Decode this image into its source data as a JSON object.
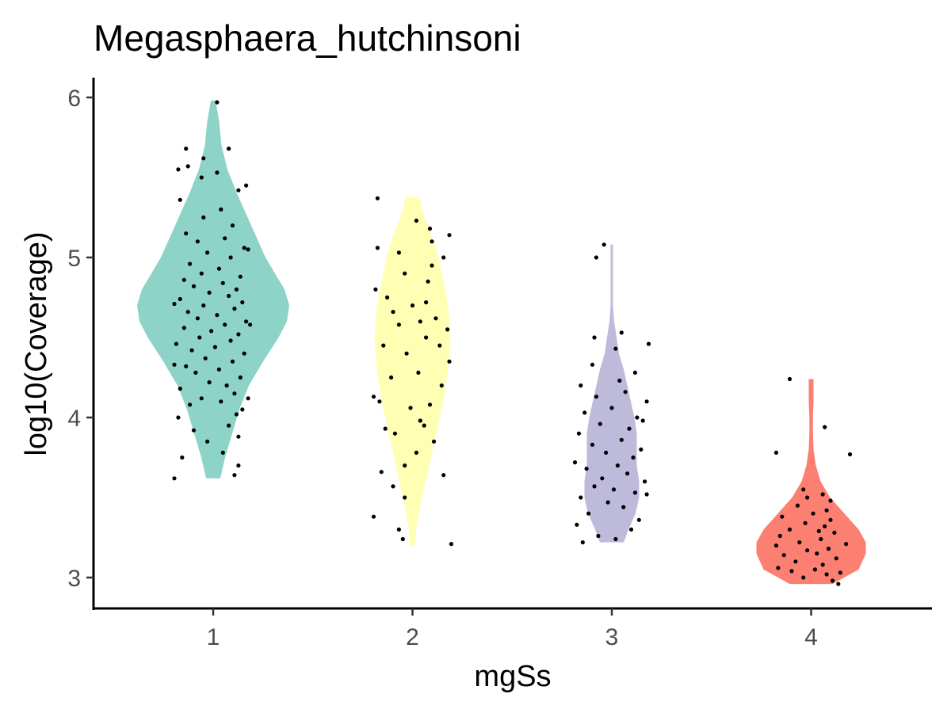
{
  "chart_data": {
    "type": "violin",
    "title": "Megasphaera_hutchinsoni",
    "xlabel": "mgSs",
    "ylabel": "log10(Coverage)",
    "categories": [
      "1",
      "2",
      "3",
      "4"
    ],
    "yticks": [
      "3",
      "4",
      "5",
      "6"
    ],
    "ylim": [
      2.8,
      6.1
    ],
    "grid": false,
    "legend": "none",
    "series": [
      {
        "category": "1",
        "color": "#8DD3C7",
        "density": [
          [
            3.62,
            0.06
          ],
          [
            3.75,
            0.1
          ],
          [
            3.9,
            0.16
          ],
          [
            4.05,
            0.22
          ],
          [
            4.2,
            0.3
          ],
          [
            4.35,
            0.42
          ],
          [
            4.5,
            0.55
          ],
          [
            4.6,
            0.62
          ],
          [
            4.7,
            0.64
          ],
          [
            4.8,
            0.6
          ],
          [
            4.9,
            0.52
          ],
          [
            5.0,
            0.44
          ],
          [
            5.1,
            0.38
          ],
          [
            5.2,
            0.32
          ],
          [
            5.3,
            0.26
          ],
          [
            5.4,
            0.2
          ],
          [
            5.55,
            0.12
          ],
          [
            5.7,
            0.07
          ],
          [
            5.85,
            0.05
          ],
          [
            5.98,
            0.02
          ]
        ],
        "points": [
          [
            3.62,
            -0.2
          ],
          [
            3.64,
            0.11
          ],
          [
            3.7,
            0.13
          ],
          [
            3.75,
            -0.16
          ],
          [
            3.78,
            0.05
          ],
          [
            3.85,
            -0.03
          ],
          [
            3.88,
            0.13
          ],
          [
            3.92,
            -0.1
          ],
          [
            3.95,
            0.08
          ],
          [
            4.0,
            -0.18
          ],
          [
            4.02,
            0.12
          ],
          [
            4.05,
            0.15
          ],
          [
            4.08,
            -0.12
          ],
          [
            4.1,
            0.04
          ],
          [
            4.12,
            -0.06
          ],
          [
            4.15,
            0.11
          ],
          [
            4.18,
            -0.17
          ],
          [
            4.2,
            0.07
          ],
          [
            4.22,
            -0.02
          ],
          [
            4.25,
            0.14
          ],
          [
            4.28,
            -0.09
          ],
          [
            4.3,
            0.03
          ],
          [
            4.32,
            -0.14
          ],
          [
            4.35,
            0.1
          ],
          [
            4.37,
            -0.04
          ],
          [
            4.4,
            0.16
          ],
          [
            4.42,
            -0.11
          ],
          [
            4.44,
            0.01
          ],
          [
            4.46,
            -0.19
          ],
          [
            4.48,
            0.09
          ],
          [
            4.5,
            -0.07
          ],
          [
            4.52,
            0.13
          ],
          [
            4.54,
            -0.01
          ],
          [
            4.56,
            -0.15
          ],
          [
            4.58,
            0.06
          ],
          [
            4.6,
            0.17
          ],
          [
            4.62,
            -0.08
          ],
          [
            4.64,
            0.02
          ],
          [
            4.66,
            -0.13
          ],
          [
            4.68,
            0.11
          ],
          [
            4.7,
            -0.05
          ],
          [
            4.72,
            0.15
          ],
          [
            4.74,
            -0.17
          ],
          [
            4.76,
            0.08
          ],
          [
            4.78,
            -0.02
          ],
          [
            4.8,
            0.12
          ],
          [
            4.82,
            -0.1
          ],
          [
            4.84,
            0.05
          ],
          [
            4.86,
            -0.15
          ],
          [
            4.88,
            0.14
          ],
          [
            4.9,
            -0.06
          ],
          [
            4.93,
            0.03
          ],
          [
            4.96,
            -0.12
          ],
          [
            5.0,
            0.09
          ],
          [
            5.03,
            -0.03
          ],
          [
            5.06,
            0.16
          ],
          [
            5.1,
            -0.08
          ],
          [
            5.12,
            0.06
          ],
          [
            5.15,
            -0.14
          ],
          [
            5.2,
            0.1
          ],
          [
            5.25,
            -0.05
          ],
          [
            5.3,
            0.04
          ],
          [
            5.36,
            -0.17
          ],
          [
            5.42,
            0.13
          ],
          [
            5.45,
            0.17
          ],
          [
            5.5,
            -0.06
          ],
          [
            5.53,
            0.02
          ],
          [
            5.55,
            -0.18
          ],
          [
            5.57,
            -0.13
          ],
          [
            5.62,
            -0.05
          ],
          [
            5.68,
            -0.14
          ],
          [
            5.68,
            0.08
          ],
          [
            5.97,
            0.02
          ],
          [
            4.33,
            -0.2
          ],
          [
            4.58,
            0.19
          ],
          [
            4.71,
            -0.2
          ],
          [
            5.05,
            0.18
          ],
          [
            4.12,
            0.18
          ]
        ]
      },
      {
        "category": "2",
        "color": "#FFFFB3",
        "density": [
          [
            3.2,
            0.02
          ],
          [
            3.35,
            0.04
          ],
          [
            3.5,
            0.08
          ],
          [
            3.7,
            0.14
          ],
          [
            3.9,
            0.2
          ],
          [
            4.1,
            0.26
          ],
          [
            4.3,
            0.3
          ],
          [
            4.5,
            0.32
          ],
          [
            4.7,
            0.3
          ],
          [
            4.85,
            0.26
          ],
          [
            5.0,
            0.22
          ],
          [
            5.1,
            0.18
          ],
          [
            5.2,
            0.13
          ],
          [
            5.3,
            0.08
          ],
          [
            5.38,
            0.06
          ]
        ],
        "points": [
          [
            3.21,
            0.2
          ],
          [
            3.24,
            -0.05
          ],
          [
            3.3,
            -0.07
          ],
          [
            3.38,
            -0.2
          ],
          [
            3.5,
            -0.04
          ],
          [
            3.57,
            -0.1
          ],
          [
            3.64,
            0.16
          ],
          [
            3.66,
            -0.16
          ],
          [
            3.7,
            -0.04
          ],
          [
            3.78,
            0.02
          ],
          [
            3.85,
            0.11
          ],
          [
            3.9,
            -0.09
          ],
          [
            3.93,
            -0.14
          ],
          [
            3.98,
            0.04
          ],
          [
            4.06,
            -0.01
          ],
          [
            4.08,
            0.09
          ],
          [
            4.1,
            -0.17
          ],
          [
            4.13,
            -0.2
          ],
          [
            4.2,
            0.15
          ],
          [
            4.25,
            -0.11
          ],
          [
            4.28,
            0.03
          ],
          [
            4.35,
            0.19
          ],
          [
            4.4,
            -0.03
          ],
          [
            4.45,
            -0.15
          ],
          [
            4.5,
            0.07
          ],
          [
            4.55,
            0.18
          ],
          [
            4.58,
            -0.07
          ],
          [
            4.6,
            0.04
          ],
          [
            4.62,
            0.12
          ],
          [
            4.66,
            -0.1
          ],
          [
            4.7,
            0.0
          ],
          [
            4.75,
            -0.13
          ],
          [
            4.8,
            -0.19
          ],
          [
            4.85,
            0.08
          ],
          [
            4.9,
            -0.04
          ],
          [
            4.95,
            0.1
          ],
          [
            5.0,
            0.16
          ],
          [
            5.03,
            -0.07
          ],
          [
            5.06,
            -0.18
          ],
          [
            5.1,
            0.1
          ],
          [
            5.14,
            0.19
          ],
          [
            5.18,
            0.09
          ],
          [
            5.23,
            0.02
          ],
          [
            5.37,
            -0.18
          ],
          [
            4.45,
            0.14
          ],
          [
            4.72,
            0.07
          ],
          [
            3.95,
            0.06
          ]
        ]
      },
      {
        "category": "3",
        "color": "#BEBADA",
        "density": [
          [
            3.22,
            0.1
          ],
          [
            3.3,
            0.14
          ],
          [
            3.4,
            0.2
          ],
          [
            3.5,
            0.23
          ],
          [
            3.6,
            0.23
          ],
          [
            3.7,
            0.21
          ],
          [
            3.8,
            0.21
          ],
          [
            3.9,
            0.21
          ],
          [
            4.0,
            0.19
          ],
          [
            4.1,
            0.16
          ],
          [
            4.2,
            0.13
          ],
          [
            4.3,
            0.1
          ],
          [
            4.4,
            0.06
          ],
          [
            4.5,
            0.04
          ],
          [
            4.6,
            0.02
          ],
          [
            4.7,
            0.01
          ],
          [
            4.85,
            0.01
          ],
          [
            5.0,
            0.01
          ],
          [
            5.08,
            0.01
          ]
        ],
        "points": [
          [
            3.22,
            -0.15
          ],
          [
            3.24,
            0.02
          ],
          [
            3.26,
            -0.07
          ],
          [
            3.3,
            0.1
          ],
          [
            3.33,
            -0.18
          ],
          [
            3.36,
            0.14
          ],
          [
            3.4,
            -0.12
          ],
          [
            3.44,
            0.06
          ],
          [
            3.47,
            -0.02
          ],
          [
            3.5,
            -0.16
          ],
          [
            3.53,
            0.12
          ],
          [
            3.55,
            0.01
          ],
          [
            3.57,
            -0.09
          ],
          [
            3.6,
            0.17
          ],
          [
            3.62,
            -0.05
          ],
          [
            3.65,
            0.08
          ],
          [
            3.68,
            -0.13
          ],
          [
            3.7,
            0.03
          ],
          [
            3.72,
            -0.19
          ],
          [
            3.75,
            0.11
          ],
          [
            3.78,
            -0.03
          ],
          [
            3.8,
            0.15
          ],
          [
            3.83,
            -0.1
          ],
          [
            3.86,
            0.05
          ],
          [
            3.9,
            -0.17
          ],
          [
            3.93,
            0.09
          ],
          [
            3.96,
            -0.06
          ],
          [
            4.0,
            0.13
          ],
          [
            4.03,
            -0.14
          ],
          [
            4.06,
            0.0
          ],
          [
            4.1,
            0.18
          ],
          [
            4.13,
            -0.08
          ],
          [
            4.16,
            0.07
          ],
          [
            4.2,
            -0.16
          ],
          [
            4.23,
            0.04
          ],
          [
            4.28,
            0.12
          ],
          [
            4.33,
            -0.1
          ],
          [
            4.43,
            0.02
          ],
          [
            4.46,
            0.19
          ],
          [
            4.5,
            -0.09
          ],
          [
            4.53,
            0.05
          ],
          [
            5.0,
            -0.08
          ],
          [
            5.08,
            -0.04
          ],
          [
            3.98,
            0.16
          ],
          [
            3.52,
            0.18
          ]
        ]
      },
      {
        "category": "4",
        "color": "#FB8072",
        "density": [
          [
            2.96,
            0.18
          ],
          [
            3.05,
            0.4
          ],
          [
            3.15,
            0.46
          ],
          [
            3.22,
            0.46
          ],
          [
            3.3,
            0.4
          ],
          [
            3.4,
            0.28
          ],
          [
            3.5,
            0.16
          ],
          [
            3.6,
            0.08
          ],
          [
            3.7,
            0.04
          ],
          [
            3.8,
            0.02
          ],
          [
            3.9,
            0.015
          ],
          [
            4.0,
            0.015
          ],
          [
            4.1,
            0.02
          ],
          [
            4.2,
            0.02
          ],
          [
            4.24,
            0.02
          ]
        ],
        "points": [
          [
            2.96,
            0.14
          ],
          [
            2.98,
            0.11
          ],
          [
            3.0,
            -0.04
          ],
          [
            3.02,
            0.08
          ],
          [
            3.03,
            0.15
          ],
          [
            3.04,
            -0.1
          ],
          [
            3.05,
            0.02
          ],
          [
            3.06,
            -0.17
          ],
          [
            3.08,
            0.06
          ],
          [
            3.1,
            -0.08
          ],
          [
            3.12,
            0.13
          ],
          [
            3.14,
            -0.14
          ],
          [
            3.15,
            0.03
          ],
          [
            3.17,
            -0.02
          ],
          [
            3.18,
            0.09
          ],
          [
            3.2,
            -0.18
          ],
          [
            3.21,
            0.18
          ],
          [
            3.22,
            -0.06
          ],
          [
            3.24,
            0.05
          ],
          [
            3.26,
            -0.16
          ],
          [
            3.28,
            0.12
          ],
          [
            3.3,
            -0.11
          ],
          [
            3.32,
            0.07
          ],
          [
            3.34,
            -0.03
          ],
          [
            3.36,
            0.1
          ],
          [
            3.38,
            -0.15
          ],
          [
            3.4,
            0.01
          ],
          [
            3.42,
            0.08
          ],
          [
            3.45,
            -0.07
          ],
          [
            3.48,
            0.1
          ],
          [
            3.5,
            -0.02
          ],
          [
            3.52,
            0.06
          ],
          [
            3.55,
            -0.04
          ],
          [
            3.78,
            -0.18
          ],
          [
            3.94,
            0.07
          ],
          [
            4.24,
            -0.11
          ],
          [
            3.77,
            0.2
          ],
          [
            3.29,
            0.04
          ]
        ]
      }
    ]
  }
}
